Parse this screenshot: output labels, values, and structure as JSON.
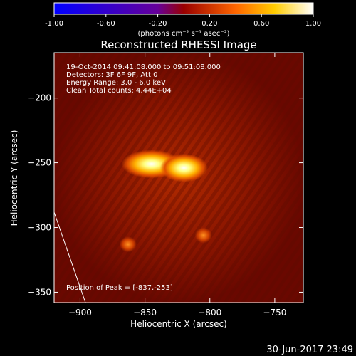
{
  "colorbar": {
    "ticks": [
      "-1.00",
      "-0.60",
      "-0.20",
      "0.20",
      "0.60",
      "1.00"
    ],
    "unit_label": "(photons cm⁻² s⁻¹ asec⁻²)"
  },
  "chart_data": {
    "type": "heatmap",
    "title": "Reconstructed RHESSI Image",
    "xlabel": "Heliocentric X (arcsec)",
    "ylabel": "Heliocentric Y (arcsec)",
    "xlim": [
      -920,
      -728
    ],
    "ylim": [
      -358,
      -165
    ],
    "x_ticks": [
      -900,
      -850,
      -800,
      -750
    ],
    "y_ticks": [
      -200,
      -250,
      -300,
      -350
    ],
    "colormap": "red-temperature",
    "color_range": [
      -1.0,
      1.0
    ],
    "sources": [
      {
        "x": -845,
        "y": -251,
        "peak": 1.0
      },
      {
        "x": -820,
        "y": -254,
        "peak": 0.75
      },
      {
        "x": -863,
        "y": -313,
        "peak": 0.35
      },
      {
        "x": -805,
        "y": -306,
        "peak": 0.3
      }
    ],
    "annotations": [
      "19-Oct-2014 09:41:08.000 to 09:51:08.000",
      "Detectors: 3F 6F 9F, Att 0",
      "Energy Range: 3.0 - 6.0 keV",
      "Clean     Total counts: 4.44E+04"
    ],
    "peak_label": "Position of Peak = [-837,-253]"
  },
  "footer": {
    "timestamp": "30-Jun-2017 23:49"
  }
}
